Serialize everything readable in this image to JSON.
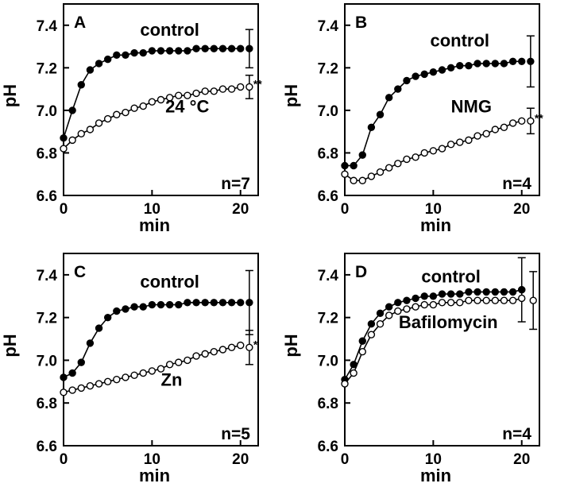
{
  "chart_data": [
    {
      "type": "line",
      "panel": "A",
      "xlabel": "min",
      "ylabel": "pH",
      "xlim": [
        0,
        22
      ],
      "ylim": [
        6.6,
        7.5
      ],
      "xticks": [
        0,
        10,
        20
      ],
      "yticks": [
        6.6,
        6.8,
        7.0,
        7.2,
        7.4
      ],
      "n_label": "n=7",
      "series": [
        {
          "name": "control",
          "marker": "filled",
          "x": [
            0,
            1,
            2,
            3,
            4,
            5,
            6,
            7,
            8,
            9,
            10,
            11,
            12,
            13,
            14,
            15,
            16,
            17,
            18,
            19,
            20
          ],
          "values": [
            6.87,
            7.0,
            7.12,
            7.19,
            7.22,
            7.24,
            7.26,
            7.26,
            7.27,
            7.27,
            7.28,
            7.28,
            7.28,
            7.28,
            7.28,
            7.29,
            7.29,
            7.29,
            7.29,
            7.29,
            7.29
          ],
          "end": {
            "x": 21,
            "mean": 7.29,
            "err": 0.09,
            "sig": ""
          }
        },
        {
          "name": "24 °C",
          "marker": "open",
          "x": [
            0,
            1,
            2,
            3,
            4,
            5,
            6,
            7,
            8,
            9,
            10,
            11,
            12,
            13,
            14,
            15,
            16,
            17,
            18,
            19,
            20
          ],
          "values": [
            6.82,
            6.86,
            6.89,
            6.91,
            6.94,
            6.96,
            6.98,
            6.99,
            7.01,
            7.02,
            7.04,
            7.05,
            7.06,
            7.07,
            7.07,
            7.08,
            7.09,
            7.09,
            7.1,
            7.1,
            7.11
          ],
          "end": {
            "x": 21,
            "mean": 7.11,
            "err": 0.055,
            "sig": "**"
          }
        }
      ]
    },
    {
      "type": "line",
      "panel": "B",
      "xlabel": "min",
      "ylabel": "pH",
      "xlim": [
        0,
        22
      ],
      "ylim": [
        6.6,
        7.5
      ],
      "xticks": [
        0,
        10,
        20
      ],
      "yticks": [
        6.6,
        6.8,
        7.0,
        7.2,
        7.4
      ],
      "n_label": "n=4",
      "series": [
        {
          "name": "control",
          "marker": "filled",
          "x": [
            0,
            1,
            2,
            3,
            4,
            5,
            6,
            7,
            8,
            9,
            10,
            11,
            12,
            13,
            14,
            15,
            16,
            17,
            18,
            19,
            20
          ],
          "values": [
            6.74,
            6.74,
            6.79,
            6.92,
            6.98,
            7.06,
            7.1,
            7.14,
            7.16,
            7.17,
            7.18,
            7.19,
            7.2,
            7.21,
            7.21,
            7.22,
            7.22,
            7.22,
            7.22,
            7.23,
            7.23
          ],
          "end": {
            "x": 21,
            "mean": 7.23,
            "err": 0.12,
            "sig": ""
          }
        },
        {
          "name": "NMG",
          "marker": "open",
          "x": [
            0,
            1,
            2,
            3,
            4,
            5,
            6,
            7,
            8,
            9,
            10,
            11,
            12,
            13,
            14,
            15,
            16,
            17,
            18,
            19,
            20
          ],
          "values": [
            6.7,
            6.67,
            6.67,
            6.69,
            6.71,
            6.73,
            6.75,
            6.77,
            6.78,
            6.8,
            6.81,
            6.82,
            6.84,
            6.85,
            6.86,
            6.88,
            6.89,
            6.91,
            6.92,
            6.94,
            6.95
          ],
          "end": {
            "x": 21,
            "mean": 6.95,
            "err": 0.06,
            "sig": "**"
          }
        }
      ]
    },
    {
      "type": "line",
      "panel": "C",
      "xlabel": "min",
      "ylabel": "pH",
      "xlim": [
        0,
        22
      ],
      "ylim": [
        6.6,
        7.5
      ],
      "xticks": [
        0,
        10,
        20
      ],
      "yticks": [
        6.6,
        6.8,
        7.0,
        7.2,
        7.4
      ],
      "n_label": "n=5",
      "series": [
        {
          "name": "control",
          "marker": "filled",
          "x": [
            0,
            1,
            2,
            3,
            4,
            5,
            6,
            7,
            8,
            9,
            10,
            11,
            12,
            13,
            14,
            15,
            16,
            17,
            18,
            19,
            20
          ],
          "values": [
            6.92,
            6.94,
            6.99,
            7.08,
            7.15,
            7.2,
            7.23,
            7.24,
            7.25,
            7.25,
            7.26,
            7.26,
            7.26,
            7.26,
            7.27,
            7.27,
            7.27,
            7.27,
            7.27,
            7.27,
            7.27
          ],
          "end": {
            "x": 21,
            "mean": 7.27,
            "err": 0.15,
            "sig": ""
          }
        },
        {
          "name": "Zn",
          "marker": "open",
          "x": [
            0,
            1,
            2,
            3,
            4,
            5,
            6,
            7,
            8,
            9,
            10,
            11,
            12,
            13,
            14,
            15,
            16,
            17,
            18,
            19,
            20
          ],
          "values": [
            6.85,
            6.86,
            6.87,
            6.88,
            6.89,
            6.9,
            6.91,
            6.92,
            6.93,
            6.94,
            6.95,
            6.96,
            6.98,
            6.99,
            7.0,
            7.02,
            7.03,
            7.04,
            7.05,
            7.06,
            7.07
          ],
          "end": {
            "x": 21,
            "mean": 7.06,
            "err": 0.08,
            "sig": "*"
          }
        }
      ]
    },
    {
      "type": "line",
      "panel": "D",
      "xlabel": "min",
      "ylabel": "pH",
      "xlim": [
        0,
        22
      ],
      "ylim": [
        6.6,
        7.5
      ],
      "xticks": [
        0,
        10,
        20
      ],
      "yticks": [
        6.6,
        6.8,
        7.0,
        7.2,
        7.4
      ],
      "n_label": "n=4",
      "series": [
        {
          "name": "control",
          "marker": "filled",
          "x": [
            0,
            1,
            2,
            3,
            4,
            5,
            6,
            7,
            8,
            9,
            10,
            11,
            12,
            13,
            14,
            15,
            16,
            17,
            18,
            19,
            20
          ],
          "values": [
            6.91,
            6.98,
            7.09,
            7.17,
            7.22,
            7.25,
            7.27,
            7.28,
            7.29,
            7.3,
            7.3,
            7.31,
            7.31,
            7.31,
            7.32,
            7.32,
            7.32,
            7.32,
            7.32,
            7.32,
            7.33
          ],
          "end": {
            "x": 20,
            "mean": 7.33,
            "err": 0.15,
            "sig": ""
          }
        },
        {
          "name": "Bafilomycin",
          "marker": "open",
          "x": [
            0,
            1,
            2,
            3,
            4,
            5,
            6,
            7,
            8,
            9,
            10,
            11,
            12,
            13,
            14,
            15,
            16,
            17,
            18,
            19,
            20
          ],
          "values": [
            6.89,
            6.94,
            7.04,
            7.12,
            7.17,
            7.21,
            7.23,
            7.24,
            7.25,
            7.26,
            7.26,
            7.27,
            7.27,
            7.27,
            7.28,
            7.28,
            7.28,
            7.28,
            7.28,
            7.28,
            7.29
          ],
          "end": {
            "x": 21.3,
            "mean": 7.28,
            "err": 0.135,
            "sig": ""
          }
        }
      ]
    }
  ]
}
